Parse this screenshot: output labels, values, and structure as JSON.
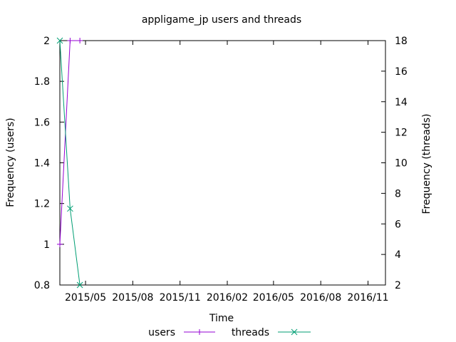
{
  "chart_data": {
    "type": "line",
    "title": "appligame_jp users and threads",
    "xlabel": "Time",
    "ylabel": "Frequency (users)",
    "y2label": "Frequency (threads)",
    "x_tick_labels": [
      "2015/05",
      "2015/08",
      "2015/11",
      "2016/02",
      "2016/05",
      "2016/08",
      "2016/11"
    ],
    "x_tick_dates": [
      "2015-05-01",
      "2015-08-01",
      "2015-11-01",
      "2016-02-01",
      "2016-05-01",
      "2016-08-01",
      "2016-11-01"
    ],
    "xlim": [
      "2015-03-12",
      "2016-12-05"
    ],
    "ylim": [
      0.8,
      2
    ],
    "y_ticks": [
      0.8,
      1,
      1.2,
      1.4,
      1.6,
      1.8,
      2
    ],
    "y2lim": [
      2,
      18
    ],
    "y2_ticks": [
      2,
      4,
      6,
      8,
      10,
      12,
      14,
      16,
      18
    ],
    "grid": false,
    "legend_position": "bottom-center",
    "series": [
      {
        "name": "users",
        "axis": "y",
        "color": "#9400d3",
        "marker": "plus",
        "x": [
          "2015-03-12",
          "2015-04-01",
          "2015-04-20"
        ],
        "values": [
          1,
          2,
          2
        ]
      },
      {
        "name": "threads",
        "axis": "y2",
        "color": "#009e73",
        "marker": "cross",
        "x": [
          "2015-03-12",
          "2015-04-01",
          "2015-04-20"
        ],
        "values": [
          18,
          7,
          2
        ]
      }
    ]
  }
}
